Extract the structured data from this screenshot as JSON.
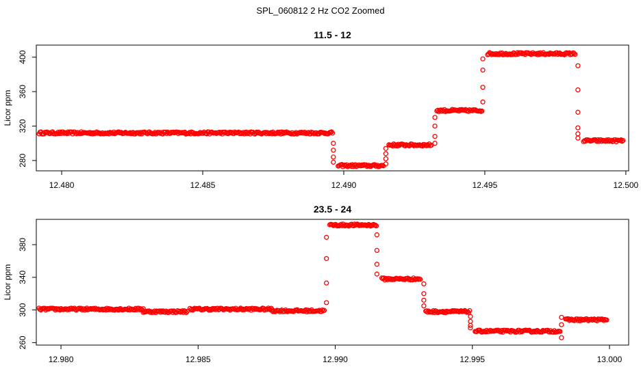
{
  "figure": {
    "supertitle": "SPL_060812  2 Hz CO2 Zoomed"
  },
  "chart_data": [
    {
      "type": "scatter",
      "title": "11.5 - 12",
      "xlabel": "",
      "ylabel": "Licor ppm",
      "xlim": [
        12.4791,
        12.5001
      ],
      "ylim": [
        268,
        414
      ],
      "xticks": [
        12.48,
        12.485,
        12.49,
        12.495,
        12.5
      ],
      "xtick_labels": [
        "12.480",
        "12.485",
        "12.490",
        "12.495",
        "12.500"
      ],
      "yticks": [
        280,
        320,
        360,
        400
      ],
      "ytick_labels": [
        "280",
        "320",
        "360",
        "400"
      ],
      "marker": "open-circle",
      "color": "#ff0000",
      "grid": false,
      "segments": [
        {
          "x_start": 12.4792,
          "x_end": 12.4896,
          "y": 312
        },
        {
          "x_start": 12.4898,
          "x_end": 12.4914,
          "y": 274
        },
        {
          "x_start": 12.4916,
          "x_end": 12.4931,
          "y": 298
        },
        {
          "x_start": 12.4933,
          "x_end": 12.4949,
          "y": 338
        },
        {
          "x_start": 12.4951,
          "x_end": 12.4982,
          "y": 404
        },
        {
          "x_start": 12.4985,
          "x_end": 12.4999,
          "y": 303
        }
      ],
      "transitions": [
        {
          "x": 12.48963,
          "values": [
            300,
            292,
            284,
            278
          ]
        },
        {
          "x": 12.49149,
          "values": [
            276,
            282,
            288,
            294
          ]
        },
        {
          "x": 12.49323,
          "values": [
            300,
            308,
            320,
            330
          ]
        },
        {
          "x": 12.49493,
          "values": [
            348,
            365,
            385,
            398
          ]
        },
        {
          "x": 12.4983,
          "values": [
            390,
            362,
            336,
            318,
            311,
            306
          ]
        }
      ]
    },
    {
      "type": "scatter",
      "title": "23.5 - 24",
      "xlabel": "",
      "ylabel": "Licor ppm",
      "xlim": [
        12.9791,
        13.0007
      ],
      "ylim": [
        257,
        411
      ],
      "xticks": [
        12.98,
        12.985,
        12.99,
        12.995,
        13.0
      ],
      "xtick_labels": [
        "12.980",
        "12.985",
        "12.990",
        "12.995",
        "13.000"
      ],
      "yticks": [
        260,
        300,
        340,
        380
      ],
      "ytick_labels": [
        "260",
        "300",
        "340",
        "380"
      ],
      "marker": "open-circle",
      "color": "#ff0000",
      "grid": false,
      "segments": [
        {
          "x_start": 12.9792,
          "x_end": 12.983,
          "y": 301
        },
        {
          "x_start": 12.983,
          "x_end": 12.9846,
          "y": 298
        },
        {
          "x_start": 12.9847,
          "x_end": 12.9877,
          "y": 301
        },
        {
          "x_start": 12.9877,
          "x_end": 12.9896,
          "y": 299
        },
        {
          "x_start": 12.9898,
          "x_end": 12.9915,
          "y": 404
        },
        {
          "x_start": 12.9917,
          "x_end": 12.9931,
          "y": 338
        },
        {
          "x_start": 12.9933,
          "x_end": 12.9949,
          "y": 298
        },
        {
          "x_start": 12.9951,
          "x_end": 12.9982,
          "y": 274
        },
        {
          "x_start": 12.9984,
          "x_end": 12.9999,
          "y": 288
        }
      ],
      "transitions": [
        {
          "x": 12.98968,
          "values": [
            309,
            333,
            363,
            389
          ]
        },
        {
          "x": 12.99152,
          "values": [
            392,
            373,
            356,
            344
          ]
        },
        {
          "x": 12.99323,
          "values": [
            332,
            320,
            312,
            305
          ]
        },
        {
          "x": 12.99493,
          "values": [
            292,
            286,
            281,
            278
          ]
        },
        {
          "x": 12.99825,
          "values": [
            266,
            282,
            291
          ]
        }
      ]
    }
  ]
}
